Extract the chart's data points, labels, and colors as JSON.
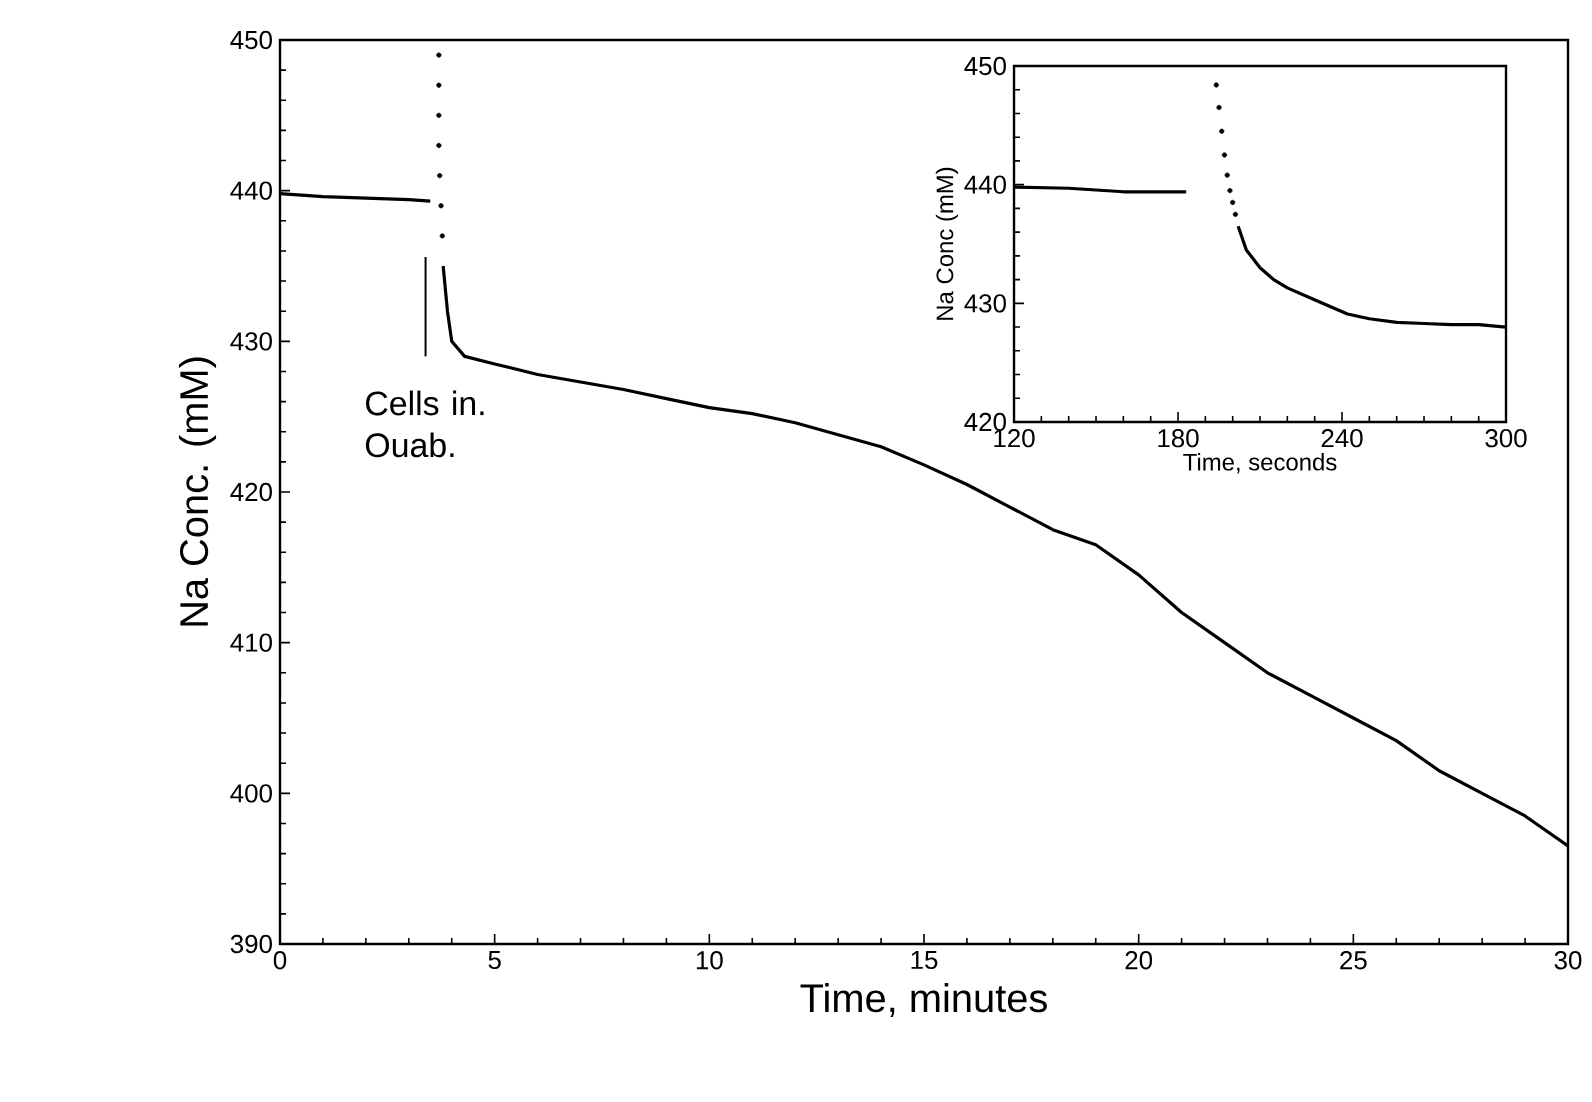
{
  "chart_data": [
    {
      "type": "line",
      "xlabel": "Time, minutes",
      "ylabel": "Na Conc. (mM)",
      "xlim": [
        0,
        30
      ],
      "ylim": [
        390,
        450
      ],
      "xticks": [
        0,
        5,
        10,
        15,
        20,
        25,
        30
      ],
      "yticks": [
        390,
        400,
        410,
        420,
        430,
        440,
        450
      ],
      "grid": false,
      "line_style": "solid",
      "annotations": [
        "Cells in. Ouab."
      ],
      "series": [
        {
          "color": "#000000",
          "x": [
            0,
            1,
            2,
            3,
            3.5
          ],
          "values": [
            439.8,
            439.6,
            439.5,
            439.4,
            439.3
          ]
        },
        {
          "type": "scatter",
          "marker": "circle",
          "color": "#000000",
          "x": [
            3.7,
            3.7,
            3.7,
            3.7,
            3.72,
            3.75,
            3.78
          ],
          "values": [
            449,
            447,
            445,
            443,
            441,
            439,
            437
          ]
        },
        {
          "color": "#000000",
          "x": [
            3.8,
            3.9,
            4.0,
            4.3,
            5,
            6,
            7,
            8,
            9,
            10,
            11,
            12,
            13,
            14,
            15,
            16,
            17,
            18,
            19,
            20,
            21,
            22,
            23,
            24,
            25,
            26,
            27,
            28,
            29,
            30
          ],
          "values": [
            435,
            432,
            430,
            429,
            428.5,
            427.8,
            427.3,
            426.8,
            426.2,
            425.6,
            425.2,
            424.6,
            423.8,
            423,
            421.8,
            420.5,
            419,
            417.5,
            416.5,
            414.5,
            412,
            410,
            408,
            406.5,
            405,
            403.5,
            401.5,
            400,
            398.5,
            396.5
          ]
        }
      ]
    },
    {
      "type": "line",
      "xlabel": "Time, seconds",
      "ylabel": "Na Conc (mM)",
      "xlim": [
        120,
        300
      ],
      "ylim": [
        420,
        450
      ],
      "xticks": [
        120,
        180,
        240,
        300
      ],
      "yticks": [
        420,
        430,
        440,
        450
      ],
      "grid": false,
      "line_style": "solid",
      "series": [
        {
          "color": "#000000",
          "x": [
            120,
            140,
            160,
            183
          ],
          "values": [
            439.8,
            439.7,
            439.4,
            439.4
          ]
        },
        {
          "type": "scatter",
          "marker": "circle",
          "color": "#000000",
          "x": [
            194,
            195,
            196,
            197,
            198,
            199,
            200,
            201
          ],
          "values": [
            448.4,
            446.5,
            444.5,
            442.5,
            440.8,
            439.5,
            438.5,
            437.5
          ]
        },
        {
          "color": "#000000",
          "x": [
            202,
            205,
            210,
            215,
            220,
            227,
            235,
            242,
            250,
            260,
            270,
            280,
            290,
            300
          ],
          "values": [
            436.5,
            434.5,
            433,
            432,
            431.3,
            430.6,
            429.8,
            429.1,
            428.7,
            428.4,
            428.3,
            428.2,
            428.2,
            428.0
          ]
        }
      ]
    }
  ]
}
